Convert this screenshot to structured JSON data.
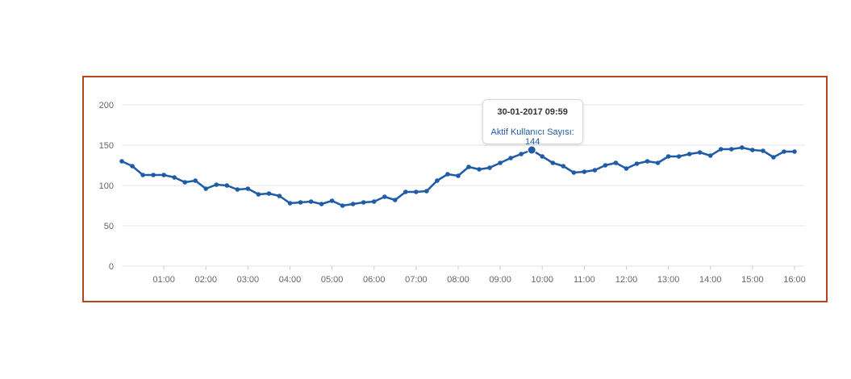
{
  "colors": {
    "series": "#1f5ca8",
    "grid": "#e6e6e6",
    "border": "#b5451b",
    "text": "#666666"
  },
  "tooltip": {
    "title": "30-01-2017 09:59",
    "series_label": "Aktif Kullanıcı Sayısı",
    "value_text": "144",
    "point_index": 39
  },
  "chart_data": {
    "type": "line",
    "ylim": [
      0,
      200
    ],
    "yticks": [
      "0",
      "50",
      "100",
      "150",
      "200"
    ],
    "xlim": [
      "00:00",
      "16:15"
    ],
    "xticks": [
      "01:00",
      "02:00",
      "03:00",
      "04:00",
      "05:00",
      "06:00",
      "07:00",
      "08:00",
      "09:00",
      "10:00",
      "11:00",
      "12:00",
      "13:00",
      "14:00",
      "15:00",
      "16:00"
    ],
    "grid": true,
    "legend": "none",
    "series": [
      {
        "values": [
          130,
          124,
          113,
          113,
          113,
          110,
          104,
          106,
          96,
          101,
          100,
          95,
          96,
          89,
          90,
          87,
          78,
          79,
          80,
          77,
          81,
          75,
          77,
          79,
          80,
          86,
          82,
          92,
          92,
          93,
          106,
          114,
          112,
          123,
          120,
          122,
          128,
          134,
          139,
          144,
          136,
          128,
          124,
          116,
          117,
          119,
          125,
          128,
          121,
          127,
          130,
          128,
          136,
          136,
          139,
          141,
          137,
          145,
          145,
          147,
          144,
          143,
          135,
          142,
          142
        ]
      }
    ]
  }
}
